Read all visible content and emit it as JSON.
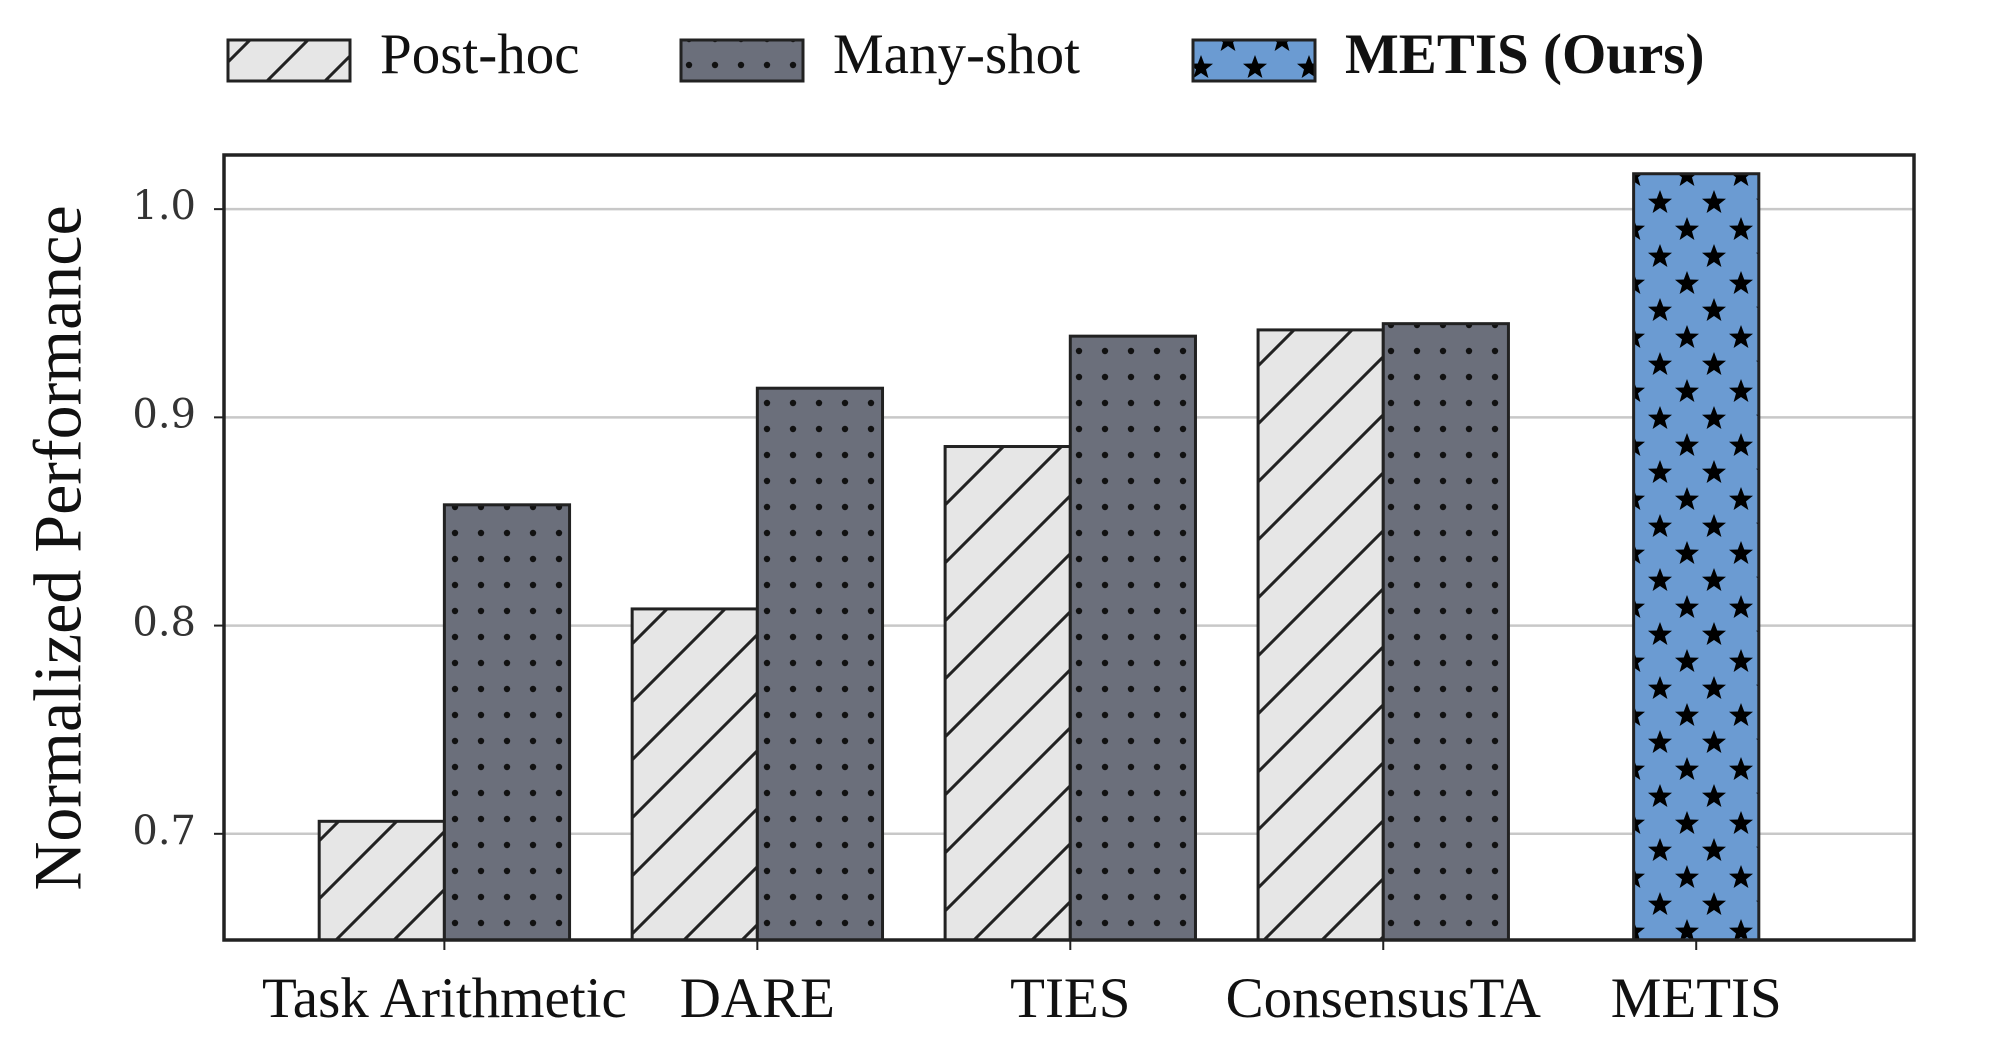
{
  "chart_data": {
    "type": "bar",
    "y_label": "Normalized Performance",
    "categories": [
      "Task Arithmetic",
      "DARE",
      "TIES",
      "ConsensusTA",
      "METIS"
    ],
    "series": [
      {
        "name": "Post-hoc",
        "color": "#e6e6e6",
        "values": [
          0.706,
          0.808,
          0.886,
          0.942,
          null
        ]
      },
      {
        "name": "Many-shot",
        "color": "#6b6f7b",
        "values": [
          0.858,
          0.914,
          0.939,
          0.945,
          null
        ]
      },
      {
        "name": "METIS (Ours)",
        "color": "#6b9bd2",
        "values": [
          null,
          null,
          null,
          null,
          1.017
        ]
      }
    ],
    "ylim": [
      0.649,
      1.026
    ],
    "yticks": [
      0.7,
      0.8,
      0.9,
      {
        "value": 1,
        "label": "1.0"
      }
    ],
    "grid": true
  }
}
